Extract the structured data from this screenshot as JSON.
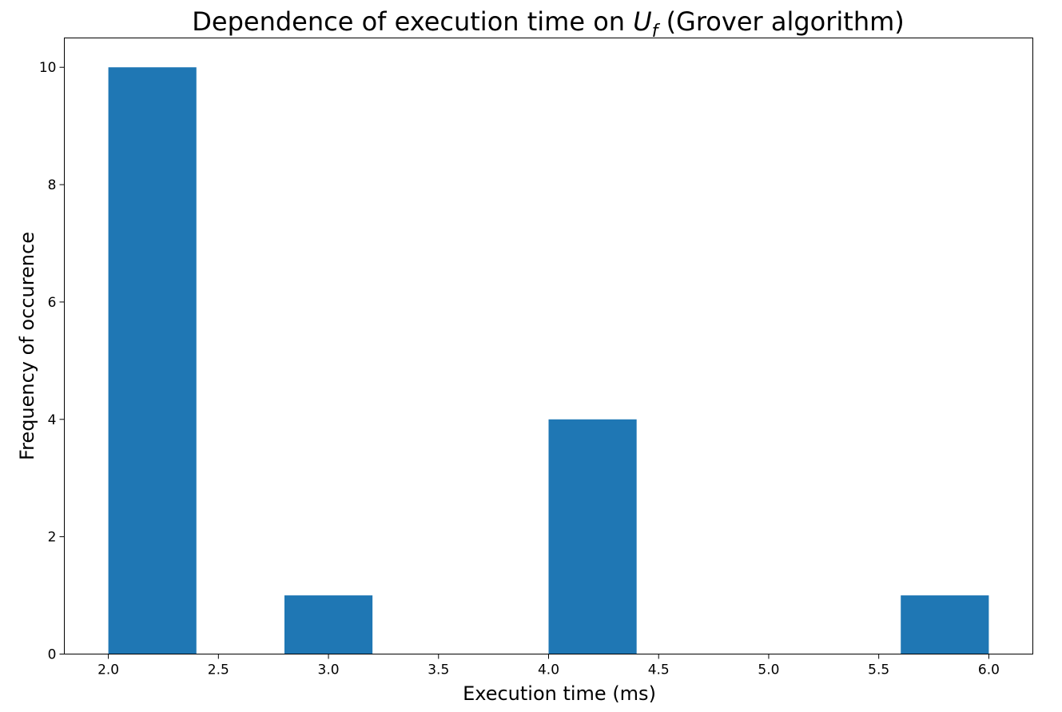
{
  "chart_data": {
    "type": "bar",
    "title": {
      "prefix": "Dependence of execution time on ",
      "symbol": "U",
      "subscript": "f",
      "suffix": " (Grover algorithm)"
    },
    "xlabel": "Execution time (ms)",
    "ylabel": "Frequency of occurence",
    "xlim": [
      1.8,
      6.2
    ],
    "ylim": [
      0,
      10.5
    ],
    "xticks": [
      "2.0",
      "2.5",
      "3.0",
      "3.5",
      "4.0",
      "4.5",
      "5.0",
      "5.5",
      "6.0"
    ],
    "yticks": [
      "0",
      "2",
      "4",
      "6",
      "8",
      "10"
    ],
    "bin_edges": [
      2.0,
      2.4,
      2.8,
      3.2,
      3.6,
      4.0,
      4.4,
      4.8,
      5.2,
      5.6,
      6.0
    ],
    "values": [
      10,
      0,
      1,
      0,
      0,
      4,
      0,
      0,
      0,
      1
    ],
    "bar_color": "#1f77b4",
    "grid": false
  }
}
